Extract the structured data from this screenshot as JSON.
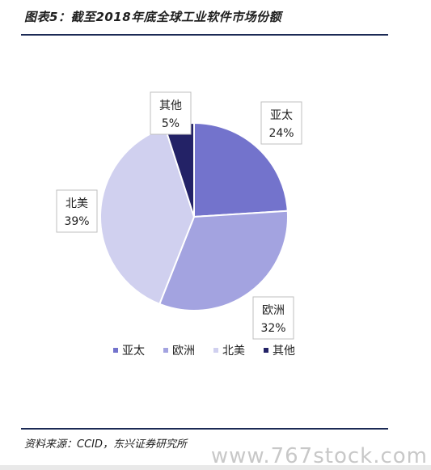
{
  "header": {
    "title": "图表5：截至2018年底全球工业软件市场份额"
  },
  "footer": {
    "source": "资料来源：CCID，东兴证券研究所",
    "watermark": "www.767stock.com"
  },
  "chart_data": {
    "type": "pie",
    "title": "",
    "categories": [
      "亚太",
      "欧洲",
      "北美",
      "其他"
    ],
    "values": [
      24,
      32,
      39,
      5
    ],
    "labels": [
      "24%",
      "32%",
      "39%",
      "5%"
    ],
    "colors": [
      "#7373cc",
      "#a3a3e0",
      "#d0d0ef",
      "#232266"
    ],
    "legend_position": "bottom"
  }
}
